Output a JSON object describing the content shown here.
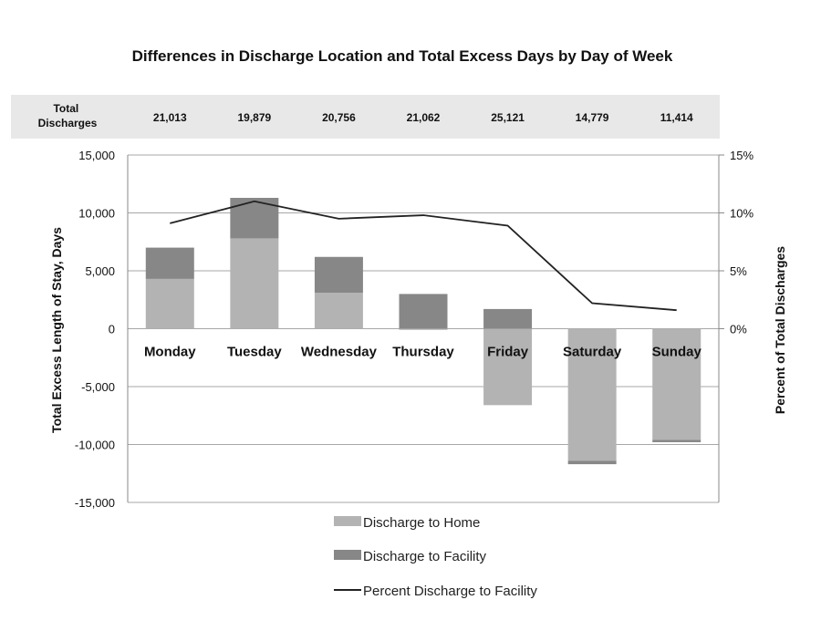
{
  "chart_data": {
    "type": "bar",
    "title": "Differences in Discharge Location and Total Excess Days by Day of Week",
    "ylabel": "Total Excess Length of Stay, Days",
    "y2label": "Percent of Total Discharges",
    "ylim": [
      -15000,
      15000
    ],
    "y_ticks": [
      15000,
      10000,
      5000,
      0,
      -5000,
      -10000,
      -15000
    ],
    "y_tick_labels": [
      "15,000",
      "10,000",
      "5,000",
      "0",
      "-5,000",
      "-10,000",
      "-15,000"
    ],
    "y2lim": [
      0,
      15
    ],
    "y2_ticks": [
      15,
      10,
      5,
      0
    ],
    "y2_tick_labels": [
      "15%",
      "10%",
      "5%",
      "0%"
    ],
    "categories": [
      "Monday",
      "Tuesday",
      "Wednesday",
      "Thursday",
      "Friday",
      "Saturday",
      "Sunday"
    ],
    "totals_header": "Total Discharges",
    "total_discharges": [
      "21,013",
      "19,879",
      "20,756",
      "21,062",
      "25,121",
      "14,779",
      "11,414"
    ],
    "grid": true,
    "legend_position": "bottom",
    "series": [
      {
        "name": "Discharge to Home",
        "kind": "bar",
        "color": "#b3b3b3",
        "values": [
          4300,
          7800,
          3100,
          -100,
          -6600,
          -11400,
          -9600
        ]
      },
      {
        "name": "Discharge to Facility",
        "kind": "bar",
        "color": "#878787",
        "values": [
          2700,
          3500,
          3100,
          3000,
          1700,
          -300,
          -200
        ]
      },
      {
        "name": "Percent Discharge to Facility",
        "kind": "line",
        "axis": "y2",
        "color": "#222222",
        "values": [
          9.1,
          11.0,
          9.5,
          9.8,
          8.9,
          2.2,
          1.6
        ]
      }
    ]
  }
}
